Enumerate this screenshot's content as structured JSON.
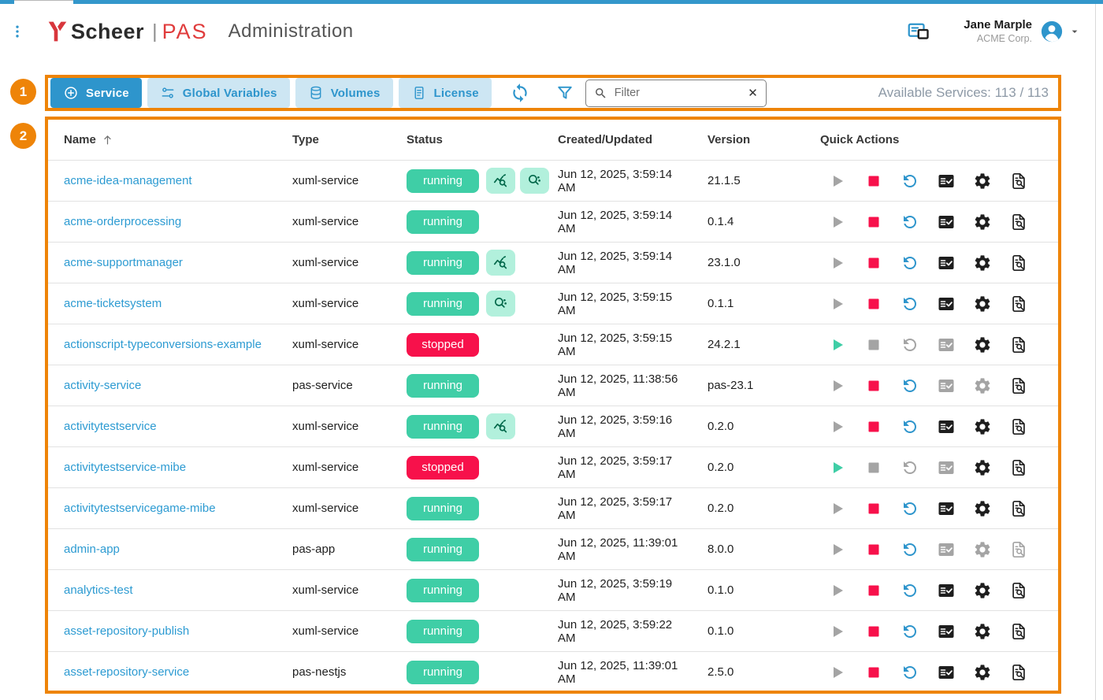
{
  "header": {
    "logo": {
      "name": "Scheer",
      "divider": "|",
      "product": "PAS",
      "page_title": "Administration"
    },
    "user": {
      "name": "Jane Marple",
      "org": "ACME Corp."
    }
  },
  "toolbar": {
    "buttons": [
      {
        "id": "service",
        "label": "Service",
        "icon": "plus-circle",
        "active": true
      },
      {
        "id": "global-variables",
        "label": "Global Variables",
        "icon": "toggles",
        "active": false
      },
      {
        "id": "volumes",
        "label": "Volumes",
        "icon": "database",
        "active": false
      },
      {
        "id": "license",
        "label": "License",
        "icon": "document",
        "active": false
      }
    ],
    "filter": {
      "placeholder": "Filter",
      "clear_icon": "✕"
    },
    "available": "Available Services: 113 / 113"
  },
  "annotations": {
    "marker1": "1",
    "marker2": "2"
  },
  "table": {
    "columns": [
      {
        "label": "Name",
        "sorted": true
      },
      {
        "label": "Type",
        "sorted": false
      },
      {
        "label": "Status",
        "sorted": false
      },
      {
        "label": "Created/Updated",
        "sorted": false
      },
      {
        "label": "Version",
        "sorted": false
      },
      {
        "label": "Quick Actions",
        "sorted": false
      }
    ],
    "rows": [
      {
        "name": "acme-idea-management",
        "type": "xuml-service",
        "status": "running",
        "badges": [
          "monitoring",
          "log-analyzer"
        ],
        "created": "Jun 12, 2025, 3:59:14 AM",
        "version": "21.1.5",
        "actions": {
          "start": false,
          "stop": true,
          "restart": true,
          "tasklist": true,
          "settings": true,
          "logs": true
        }
      },
      {
        "name": "acme-orderprocessing",
        "type": "xuml-service",
        "status": "running",
        "badges": [],
        "created": "Jun 12, 2025, 3:59:14 AM",
        "version": "0.1.4",
        "actions": {
          "start": false,
          "stop": true,
          "restart": true,
          "tasklist": true,
          "settings": true,
          "logs": true
        }
      },
      {
        "name": "acme-supportmanager",
        "type": "xuml-service",
        "status": "running",
        "badges": [
          "monitoring"
        ],
        "created": "Jun 12, 2025, 3:59:14 AM",
        "version": "23.1.0",
        "actions": {
          "start": false,
          "stop": true,
          "restart": true,
          "tasklist": true,
          "settings": true,
          "logs": true
        }
      },
      {
        "name": "acme-ticketsystem",
        "type": "xuml-service",
        "status": "running",
        "badges": [
          "log-analyzer"
        ],
        "created": "Jun 12, 2025, 3:59:15 AM",
        "version": "0.1.1",
        "actions": {
          "start": false,
          "stop": true,
          "restart": true,
          "tasklist": true,
          "settings": true,
          "logs": true
        }
      },
      {
        "name": "actionscript-typeconversions-example",
        "type": "xuml-service",
        "status": "stopped",
        "badges": [],
        "created": "Jun 12, 2025, 3:59:15 AM",
        "version": "24.2.1",
        "actions": {
          "start": true,
          "stop": false,
          "restart": false,
          "tasklist": false,
          "settings": true,
          "logs": true
        }
      },
      {
        "name": "activity-service",
        "type": "pas-service",
        "status": "running",
        "badges": [],
        "created": "Jun 12, 2025, 11:38:56 AM",
        "version": "pas-23.1",
        "actions": {
          "start": false,
          "stop": true,
          "restart": true,
          "tasklist": false,
          "settings": false,
          "logs": true
        }
      },
      {
        "name": "activitytestservice",
        "type": "xuml-service",
        "status": "running",
        "badges": [
          "monitoring"
        ],
        "created": "Jun 12, 2025, 3:59:16 AM",
        "version": "0.2.0",
        "actions": {
          "start": false,
          "stop": true,
          "restart": true,
          "tasklist": true,
          "settings": true,
          "logs": true
        }
      },
      {
        "name": "activitytestservice-mibe",
        "type": "xuml-service",
        "status": "stopped",
        "badges": [],
        "created": "Jun 12, 2025, 3:59:17 AM",
        "version": "0.2.0",
        "actions": {
          "start": true,
          "stop": false,
          "restart": false,
          "tasklist": false,
          "settings": true,
          "logs": true
        }
      },
      {
        "name": "activitytestservicegame-mibe",
        "type": "xuml-service",
        "status": "running",
        "badges": [],
        "created": "Jun 12, 2025, 3:59:17 AM",
        "version": "0.2.0",
        "actions": {
          "start": false,
          "stop": true,
          "restart": true,
          "tasklist": true,
          "settings": true,
          "logs": true
        }
      },
      {
        "name": "admin-app",
        "type": "pas-app",
        "status": "running",
        "badges": [],
        "created": "Jun 12, 2025, 11:39:01 AM",
        "version": "8.0.0",
        "actions": {
          "start": false,
          "stop": true,
          "restart": true,
          "tasklist": false,
          "settings": false,
          "logs": false
        }
      },
      {
        "name": "analytics-test",
        "type": "xuml-service",
        "status": "running",
        "badges": [],
        "created": "Jun 12, 2025, 3:59:19 AM",
        "version": "0.1.0",
        "actions": {
          "start": false,
          "stop": true,
          "restart": true,
          "tasklist": true,
          "settings": true,
          "logs": true
        }
      },
      {
        "name": "asset-repository-publish",
        "type": "xuml-service",
        "status": "running",
        "badges": [],
        "created": "Jun 12, 2025, 3:59:22 AM",
        "version": "0.1.0",
        "actions": {
          "start": false,
          "stop": true,
          "restart": true,
          "tasklist": true,
          "settings": true,
          "logs": true
        }
      },
      {
        "name": "asset-repository-service",
        "type": "pas-nestjs",
        "status": "running",
        "badges": [],
        "created": "Jun 12, 2025, 11:39:01 AM",
        "version": "2.5.0",
        "actions": {
          "start": false,
          "stop": true,
          "restart": true,
          "tasklist": true,
          "settings": true,
          "logs": true
        }
      }
    ]
  },
  "colors": {
    "accent_blue": "#2e95cc",
    "running_green": "#3fcea6",
    "badge_green_bg": "#b2f0dc",
    "badge_green_icon": "#00684a",
    "stopped_red": "#f7114b",
    "link_blue": "#2d9bd2",
    "annotation_orange": "#ee8408",
    "topbar_blue": "#3397cb"
  }
}
